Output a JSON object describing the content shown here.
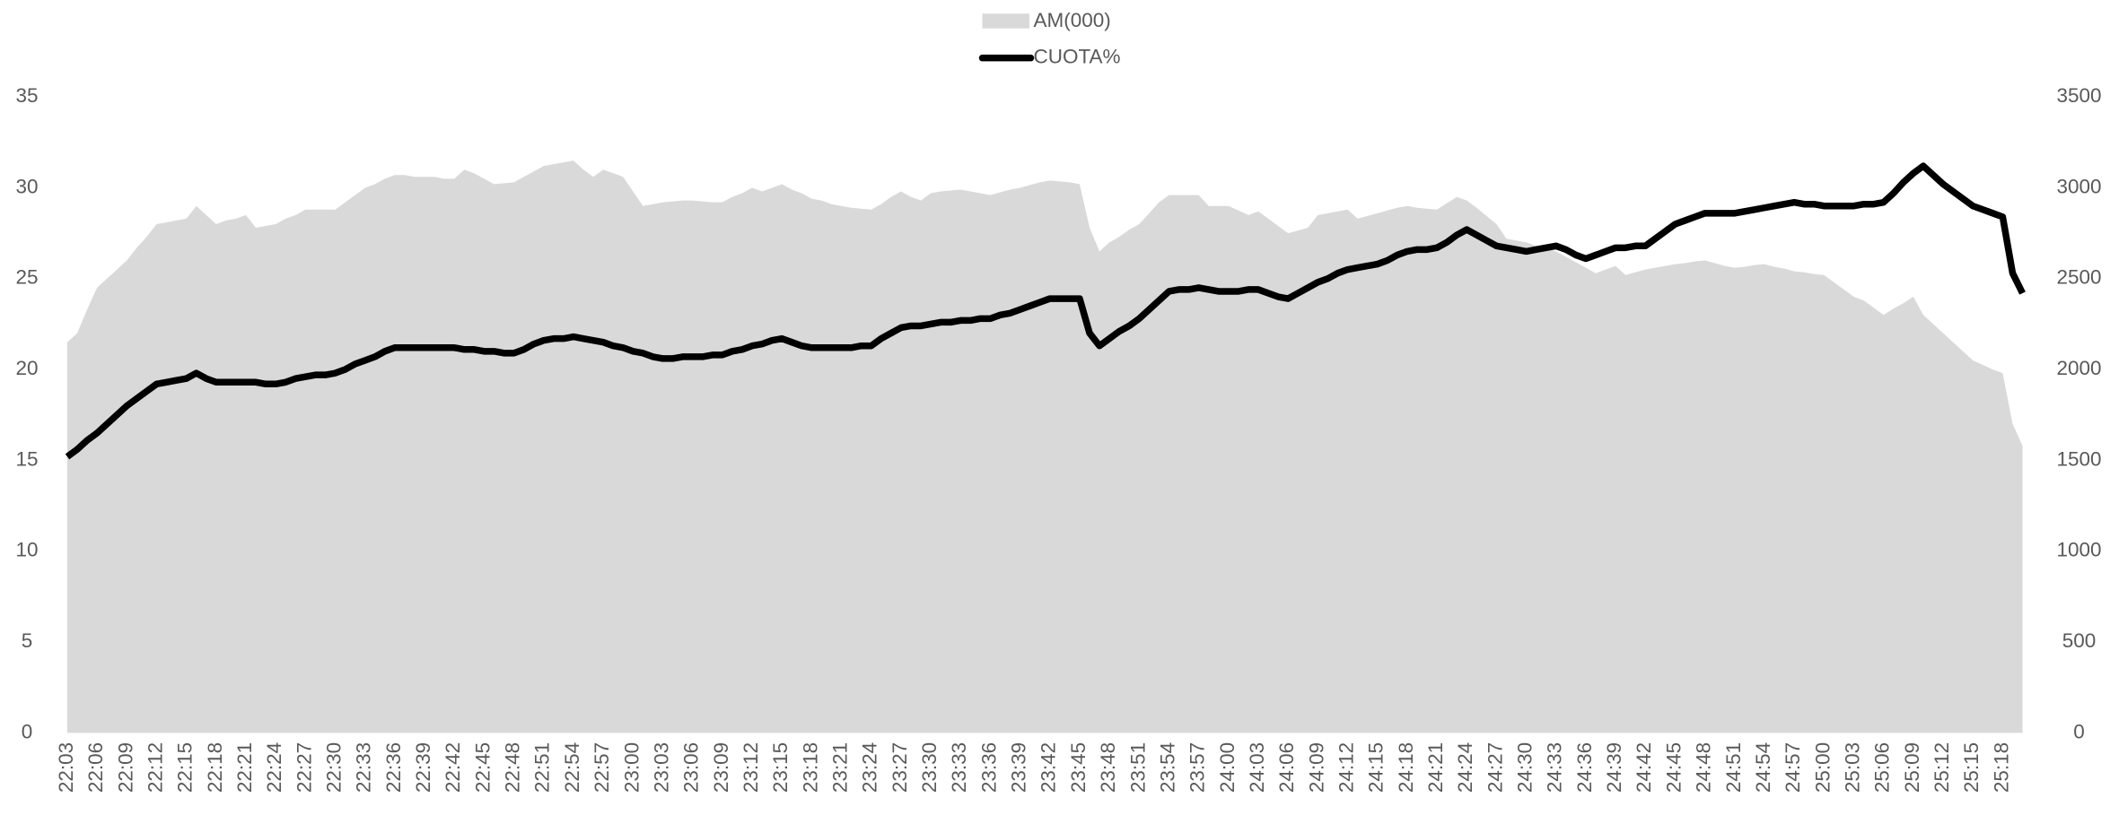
{
  "chart_data": {
    "type": "line",
    "categories": [
      "22:03",
      null,
      null,
      "22:06",
      null,
      null,
      "22:09",
      null,
      null,
      "22:12",
      null,
      null,
      "22:15",
      null,
      null,
      "22:18",
      null,
      null,
      "22:21",
      null,
      null,
      "22:24",
      null,
      null,
      "22:27",
      null,
      null,
      "22:30",
      null,
      null,
      "22:33",
      null,
      null,
      "22:36",
      null,
      null,
      "22:39",
      null,
      null,
      "22:42",
      null,
      null,
      "22:45",
      null,
      null,
      "22:48",
      null,
      null,
      "22:51",
      null,
      null,
      "22:54",
      null,
      null,
      "22:57",
      null,
      null,
      "23:00",
      null,
      null,
      "23:03",
      null,
      null,
      "23:06",
      null,
      null,
      "23:09",
      null,
      null,
      "23:12",
      null,
      null,
      "23:15",
      null,
      null,
      "23:18",
      null,
      null,
      "23:21",
      null,
      null,
      "23:24",
      null,
      null,
      "23:27",
      null,
      null,
      "23:30",
      null,
      null,
      "23:33",
      null,
      null,
      "23:36",
      null,
      null,
      "23:39",
      null,
      null,
      "23:42",
      null,
      null,
      "23:45",
      null,
      null,
      "23:48",
      null,
      null,
      "23:51",
      null,
      null,
      "23:54",
      null,
      null,
      "23:57",
      null,
      null,
      "24:00",
      null,
      null,
      "24:03",
      null,
      null,
      "24:06",
      null,
      null,
      "24:09",
      null,
      null,
      "24:12",
      null,
      null,
      "24:15",
      null,
      null,
      "24:18",
      null,
      null,
      "24:21",
      null,
      null,
      "24:24",
      null,
      null,
      "24:27",
      null,
      null,
      "24:30",
      null,
      null,
      "24:33",
      null,
      null,
      "24:36",
      null,
      null,
      "24:39",
      null,
      null,
      "24:42",
      null,
      null,
      "24:45",
      null,
      null,
      "24:48",
      null,
      null,
      "24:51",
      null,
      null,
      "24:54",
      null,
      null,
      "24:57",
      null,
      null,
      "25:00",
      null,
      null,
      "25:03",
      null,
      null,
      "25:06",
      null,
      null,
      "25:09",
      null,
      null,
      "25:12",
      null,
      null,
      "25:15",
      null,
      null,
      "25:18",
      null,
      null
    ],
    "series": [
      {
        "name": "AM(000)",
        "type": "area",
        "axis": "y2",
        "color": "#d9d9d9",
        "values": [
          2150,
          2200,
          2330,
          2450,
          2500,
          2550,
          2600,
          2670,
          2730,
          2800,
          2810,
          2820,
          2830,
          2900,
          2850,
          2800,
          2820,
          2830,
          2850,
          2780,
          2790,
          2800,
          2830,
          2850,
          2880,
          2880,
          2880,
          2880,
          2920,
          2960,
          3000,
          3020,
          3050,
          3070,
          3070,
          3060,
          3060,
          3060,
          3050,
          3050,
          3100,
          3080,
          3050,
          3020,
          3025,
          3030,
          3060,
          3090,
          3120,
          3130,
          3140,
          3150,
          3100,
          3060,
          3100,
          3080,
          3060,
          2980,
          2900,
          2910,
          2920,
          2925,
          2930,
          2930,
          2925,
          2920,
          2920,
          2950,
          2970,
          3000,
          2980,
          3000,
          3020,
          2990,
          2970,
          2940,
          2930,
          2910,
          2900,
          2890,
          2885,
          2880,
          2910,
          2950,
          2980,
          2950,
          2930,
          2970,
          2980,
          2985,
          2990,
          2980,
          2970,
          2960,
          2975,
          2990,
          3000,
          3015,
          3030,
          3040,
          3035,
          3030,
          3020,
          2780,
          2650,
          2700,
          2730,
          2770,
          2800,
          2860,
          2920,
          2960,
          2960,
          2960,
          2960,
          2900,
          2900,
          2900,
          2875,
          2850,
          2870,
          2830,
          2790,
          2750,
          2765,
          2780,
          2850,
          2860,
          2870,
          2880,
          2830,
          2845,
          2860,
          2875,
          2890,
          2900,
          2890,
          2885,
          2880,
          2915,
          2950,
          2930,
          2890,
          2845,
          2800,
          2720,
          2710,
          2700,
          2680,
          2665,
          2650,
          2620,
          2590,
          2560,
          2530,
          2550,
          2570,
          2520,
          2535,
          2550,
          2560,
          2570,
          2580,
          2585,
          2595,
          2600,
          2585,
          2570,
          2560,
          2565,
          2575,
          2580,
          2565,
          2555,
          2540,
          2535,
          2525,
          2520,
          2480,
          2440,
          2400,
          2380,
          2340,
          2300,
          2335,
          2365,
          2400,
          2300,
          2250,
          2200,
          2150,
          2100,
          2050,
          2025,
          2000,
          1980,
          1700,
          1580
        ]
      },
      {
        "name": "CUOTA%",
        "type": "line",
        "color": "#000000",
        "values": [
          15.2,
          15.6,
          16.1,
          16.5,
          17.0,
          17.5,
          18.0,
          18.4,
          18.8,
          19.2,
          19.3,
          19.4,
          19.5,
          19.8,
          19.5,
          19.3,
          19.3,
          19.3,
          19.3,
          19.3,
          19.2,
          19.2,
          19.3,
          19.5,
          19.6,
          19.7,
          19.7,
          19.8,
          20.0,
          20.3,
          20.5,
          20.7,
          21.0,
          21.2,
          21.2,
          21.2,
          21.2,
          21.2,
          21.2,
          21.2,
          21.1,
          21.1,
          21.0,
          21.0,
          20.9,
          20.9,
          21.1,
          21.4,
          21.6,
          21.7,
          21.7,
          21.8,
          21.7,
          21.6,
          21.5,
          21.3,
          21.2,
          21.0,
          20.9,
          20.7,
          20.6,
          20.6,
          20.7,
          20.7,
          20.7,
          20.8,
          20.8,
          21.0,
          21.1,
          21.3,
          21.4,
          21.6,
          21.7,
          21.5,
          21.3,
          21.2,
          21.2,
          21.2,
          21.2,
          21.2,
          21.3,
          21.3,
          21.7,
          22.0,
          22.3,
          22.4,
          22.4,
          22.5,
          22.6,
          22.6,
          22.7,
          22.7,
          22.8,
          22.8,
          23.0,
          23.1,
          23.3,
          23.5,
          23.7,
          23.9,
          23.9,
          23.9,
          23.9,
          22.0,
          21.3,
          21.7,
          22.1,
          22.4,
          22.8,
          23.3,
          23.8,
          24.3,
          24.4,
          24.4,
          24.5,
          24.4,
          24.3,
          24.3,
          24.3,
          24.4,
          24.4,
          24.2,
          24.0,
          23.9,
          24.2,
          24.5,
          24.8,
          25.0,
          25.3,
          25.5,
          25.6,
          25.7,
          25.8,
          26.0,
          26.3,
          26.5,
          26.6,
          26.6,
          26.7,
          27.0,
          27.4,
          27.7,
          27.4,
          27.1,
          26.8,
          26.7,
          26.6,
          26.5,
          26.6,
          26.7,
          26.8,
          26.6,
          26.3,
          26.1,
          26.3,
          26.5,
          26.7,
          26.7,
          26.8,
          26.8,
          27.2,
          27.6,
          28.0,
          28.2,
          28.4,
          28.6,
          28.6,
          28.6,
          28.6,
          28.7,
          28.8,
          28.9,
          29.0,
          29.1,
          29.2,
          29.1,
          29.1,
          29.0,
          29.0,
          29.0,
          29.0,
          29.1,
          29.1,
          29.2,
          29.7,
          30.3,
          30.8,
          31.2,
          30.7,
          30.2,
          29.8,
          29.4,
          29.0,
          28.8,
          28.6,
          28.4,
          25.3,
          24.2
        ]
      }
    ],
    "ylim": [
      0,
      35
    ],
    "yticks": [
      0,
      5,
      10,
      15,
      20,
      25,
      30,
      35
    ],
    "y2lim": [
      0,
      3500
    ],
    "y2ticks": [
      0,
      500,
      1000,
      1500,
      2000,
      2500,
      3000,
      3500
    ],
    "grid": false,
    "legend": "top"
  }
}
